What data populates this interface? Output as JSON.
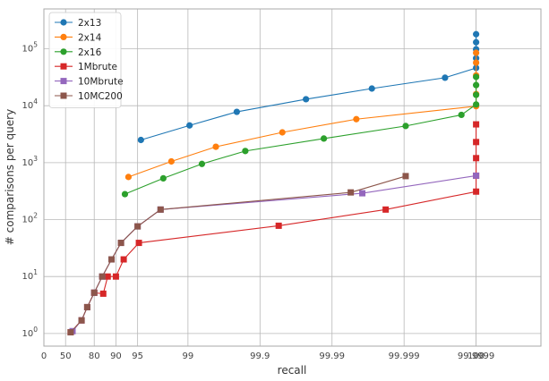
{
  "chart_data": {
    "type": "line",
    "title": "",
    "xlabel": "recall",
    "ylabel": "# comparisons per query",
    "yscale": "log",
    "xscale": "nines",
    "ylim": [
      0.6,
      500000
    ],
    "xlim": [
      0,
      6.9
    ],
    "grid": true,
    "legend_position": "top-left",
    "x_ticks": [
      {
        "label": "0",
        "value": 0
      },
      {
        "label": "50",
        "value": 50
      },
      {
        "label": "80",
        "value": 80
      },
      {
        "label": "90",
        "value": 90
      },
      {
        "label": "95",
        "value": 95
      },
      {
        "label": "99",
        "value": 99
      },
      {
        "label": "99.9",
        "value": 99.9
      },
      {
        "label": "99.99",
        "value": 99.99
      },
      {
        "label": "99.999",
        "value": 99.999
      },
      {
        "label": "99.9999",
        "value": 99.9999
      },
      {
        "label": "100",
        "value": 100
      }
    ],
    "y_ticks": [
      {
        "label": "10",
        "sup": "0",
        "value": 1
      },
      {
        "label": "10",
        "sup": "1",
        "value": 10
      },
      {
        "label": "10",
        "sup": "2",
        "value": 100
      },
      {
        "label": "10",
        "sup": "3",
        "value": 1000
      },
      {
        "label": "10",
        "sup": "4",
        "value": 10000
      },
      {
        "label": "10",
        "sup": "5",
        "value": 100000
      }
    ],
    "series": [
      {
        "name": "2x13",
        "color": "#1f77b4",
        "marker": "circle",
        "points": [
          [
            95.5,
            2500
          ],
          [
            99.05,
            4500
          ],
          [
            99.79,
            7800
          ],
          [
            99.977,
            13000
          ],
          [
            99.9972,
            20000
          ],
          [
            99.99973,
            31000
          ],
          [
            99.99991,
            46000
          ],
          [
            99.999972,
            68000
          ],
          [
            99.999988,
            98000
          ],
          [
            100,
            130000
          ],
          [
            100,
            180000
          ]
        ]
      },
      {
        "name": "2x14",
        "color": "#ff7f0e",
        "marker": "circle",
        "points": [
          [
            93.3,
            560
          ],
          [
            98.3,
            1050
          ],
          [
            99.59,
            1900
          ],
          [
            99.951,
            3400
          ],
          [
            99.9954,
            5800
          ],
          [
            99.999955,
            9800
          ],
          [
            100,
            16000
          ],
          [
            100,
            34000
          ],
          [
            100,
            57000
          ],
          [
            100,
            85000
          ]
        ]
      },
      {
        "name": "2x16",
        "color": "#2ca02c",
        "marker": "circle",
        "points": [
          [
            92.5,
            280
          ],
          [
            97.8,
            530
          ],
          [
            99.36,
            950
          ],
          [
            99.84,
            1600
          ],
          [
            99.987,
            2650
          ],
          [
            99.99905,
            4400
          ],
          [
            99.99984,
            6900
          ],
          [
            100,
            10500
          ],
          [
            100,
            15500
          ],
          [
            100,
            23000
          ],
          [
            100,
            32000
          ]
        ]
      },
      {
        "name": "1Mbrute",
        "color": "#d62728",
        "marker": "square",
        "points": [
          [
            57.5,
            1.05
          ],
          [
            70,
            1.7
          ],
          [
            75,
            2.9
          ],
          [
            80,
            5.2
          ],
          [
            85,
            5.0
          ],
          [
            87,
            10
          ],
          [
            90,
            10
          ],
          [
            92.2,
            20
          ],
          [
            95.2,
            39
          ],
          [
            99.945,
            78
          ],
          [
            99.9982,
            150
          ],
          [
            99.999955,
            310
          ],
          [
            100,
            590
          ],
          [
            100,
            1200
          ],
          [
            100,
            2300
          ],
          [
            100,
            4700
          ]
        ]
      },
      {
        "name": "10Mbrute",
        "color": "#9467bd",
        "marker": "square",
        "points": [
          [
            60,
            1.1
          ],
          [
            70,
            1.7
          ],
          [
            75,
            2.9
          ],
          [
            80,
            5.2
          ],
          [
            84.5,
            10
          ],
          [
            88.5,
            20
          ],
          [
            91.5,
            39
          ],
          [
            95,
            76
          ],
          [
            97.6,
            150
          ],
          [
            99.9962,
            290
          ],
          [
            100,
            590
          ]
        ]
      },
      {
        "name": "10MC200",
        "color": "#8c564b",
        "marker": "square",
        "points": [
          [
            57.5,
            1.05
          ],
          [
            70,
            1.7
          ],
          [
            75,
            2.9
          ],
          [
            80,
            5.2
          ],
          [
            84.5,
            10
          ],
          [
            88.5,
            20
          ],
          [
            91.5,
            39
          ],
          [
            95,
            76
          ],
          [
            97.6,
            150
          ],
          [
            99.9945,
            300
          ],
          [
            99.99905,
            580
          ]
        ]
      }
    ]
  }
}
